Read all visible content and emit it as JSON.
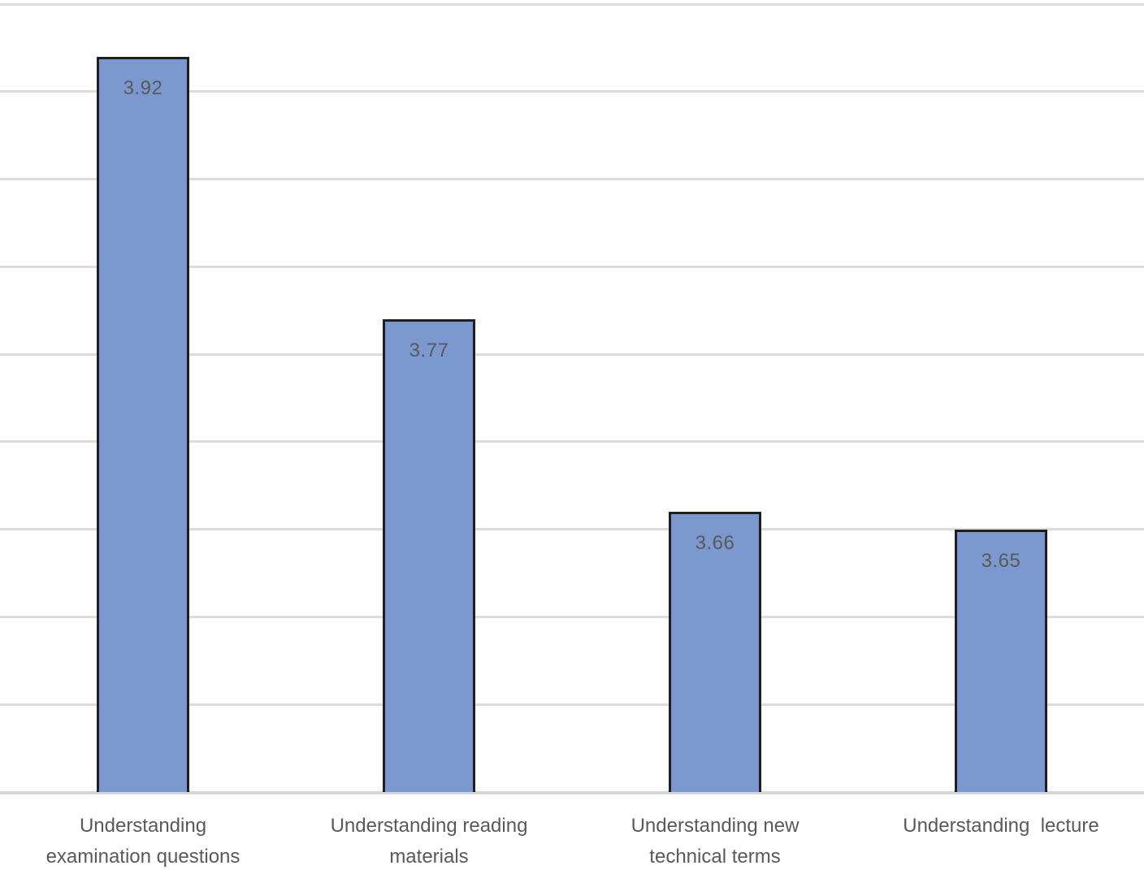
{
  "chart_data": {
    "type": "bar",
    "categories": [
      "Understanding\nexamination questions",
      "Understanding reading\nmaterials",
      "Understanding new\ntechnical terms",
      "Understanding  lecture"
    ],
    "values": [
      3.92,
      3.77,
      3.66,
      3.65
    ],
    "data_labels": [
      "3.92",
      "3.77",
      "3.66",
      "3.65"
    ],
    "data_label_position": "inside-end",
    "title": "",
    "xlabel": "",
    "ylabel": "",
    "ylim": [
      3.5,
      3.95
    ],
    "gridline_step": 0.05,
    "grid": true,
    "legend": "none",
    "y_tick_labels_visible": false
  },
  "style": {
    "bar_fill": "#7b99cf",
    "bar_border": "#1f1f1f",
    "gridline_color": "#dcdcdc",
    "axis_line_color": "#d6d6d6",
    "text_color": "#595959",
    "background": "#ffffff"
  }
}
